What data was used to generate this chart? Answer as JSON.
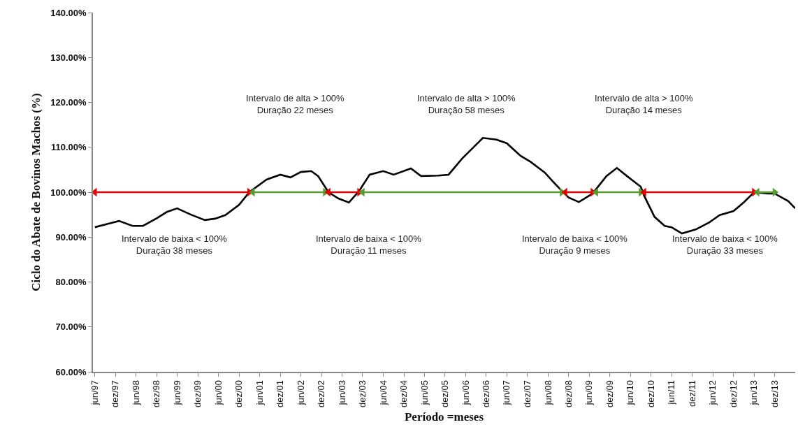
{
  "chart_data": {
    "type": "line",
    "xlabel": "Período =meses",
    "ylabel": "Ciclo do Abate de Bovinos Machos (%)",
    "ylim": [
      60,
      140
    ],
    "yticks": [
      {
        "value": 60,
        "label": "60.00%"
      },
      {
        "value": 70,
        "label": "70.00%"
      },
      {
        "value": 80,
        "label": "80.00%"
      },
      {
        "value": 90,
        "label": "90.00%"
      },
      {
        "value": 100,
        "label": "100.00%"
      },
      {
        "value": 110,
        "label": "110.00%"
      },
      {
        "value": 120,
        "label": "120.00%"
      },
      {
        "value": 130,
        "label": "130.00%"
      },
      {
        "value": 140,
        "label": "140.00%"
      }
    ],
    "xlim": [
      "1997-05-15",
      "2014-06"
    ],
    "xticks": [
      {
        "value": "1997-06",
        "label": "jun/97"
      },
      {
        "value": "1997-12",
        "label": "dez/97"
      },
      {
        "value": "1998-06",
        "label": "jun/98"
      },
      {
        "value": "1998-12",
        "label": "dez/98"
      },
      {
        "value": "1999-06",
        "label": "jun/99"
      },
      {
        "value": "1999-12",
        "label": "dez/99"
      },
      {
        "value": "2000-06",
        "label": "jun/00"
      },
      {
        "value": "2000-12",
        "label": "dez/00"
      },
      {
        "value": "2001-06",
        "label": "jun/01"
      },
      {
        "value": "2001-12",
        "label": "dez/01"
      },
      {
        "value": "2002-06",
        "label": "jun/02"
      },
      {
        "value": "2002-12",
        "label": "dez/02"
      },
      {
        "value": "2003-06",
        "label": "jun/03"
      },
      {
        "value": "2003-12",
        "label": "dez/03"
      },
      {
        "value": "2004-06",
        "label": "jun/04"
      },
      {
        "value": "2004-12",
        "label": "dez/04"
      },
      {
        "value": "2005-06",
        "label": "jun/05"
      },
      {
        "value": "2005-12",
        "label": "dez/05"
      },
      {
        "value": "2006-06",
        "label": "jun/06"
      },
      {
        "value": "2006-12",
        "label": "dez/06"
      },
      {
        "value": "2007-06",
        "label": "jun/07"
      },
      {
        "value": "2007-12",
        "label": "dez/07"
      },
      {
        "value": "2008-06",
        "label": "jun/08"
      },
      {
        "value": "2008-12",
        "label": "dez/08"
      },
      {
        "value": "2009-06",
        "label": "jun/09"
      },
      {
        "value": "2009-12",
        "label": "dez/09"
      },
      {
        "value": "2010-06",
        "label": "jun/10"
      },
      {
        "value": "2010-12",
        "label": "dez/10"
      },
      {
        "value": "2011-06",
        "label": "jun/11"
      },
      {
        "value": "2011-12",
        "label": "dez/11"
      },
      {
        "value": "2012-06",
        "label": "jun/12"
      },
      {
        "value": "2012-12",
        "label": "dez/12"
      },
      {
        "value": "2013-06",
        "label": "jun/13"
      },
      {
        "value": "2013-12",
        "label": "dez/13"
      }
    ],
    "series": [
      {
        "color": "#000000",
        "x": [
          "1997-06",
          "1997-10",
          "1998-01",
          "1998-05",
          "1998-08",
          "1998-12",
          "1999-03",
          "1999-06",
          "1999-10",
          "2000-02",
          "2000-05",
          "2000-08",
          "2000-12",
          "2001-03",
          "2001-08",
          "2001-12",
          "2002-03",
          "2002-06",
          "2002-09",
          "2002-11",
          "2003-02",
          "2003-05",
          "2003-08",
          "2003-11",
          "2004-02",
          "2004-06",
          "2004-09",
          "2005-02",
          "2005-05",
          "2005-10",
          "2006-01",
          "2006-05",
          "2006-07",
          "2006-11",
          "2007-03",
          "2007-06",
          "2007-10",
          "2008-01",
          "2008-05",
          "2008-08",
          "2008-10",
          "2008-12",
          "2009-03",
          "2009-07",
          "2009-11",
          "2010-02",
          "2010-05",
          "2010-09",
          "2010-10",
          "2011-01",
          "2011-04",
          "2011-06",
          "2011-09",
          "2012-01",
          "2012-05",
          "2012-08",
          "2012-12",
          "2013-03",
          "2013-06",
          "2013-10",
          "2013-12",
          "2014-04",
          "2014-06"
        ],
        "values": [
          92.2,
          93.0,
          93.6,
          92.5,
          92.5,
          94.2,
          95.6,
          96.4,
          95.0,
          93.8,
          94.1,
          94.9,
          97.2,
          100.0,
          102.8,
          103.9,
          103.3,
          104.5,
          104.7,
          103.6,
          100.0,
          98.6,
          97.7,
          100.3,
          103.9,
          104.7,
          103.9,
          105.3,
          103.6,
          103.7,
          103.9,
          107.5,
          109.0,
          112.1,
          111.7,
          110.9,
          108.1,
          106.7,
          104.4,
          101.9,
          100.3,
          98.8,
          97.8,
          99.7,
          103.6,
          105.4,
          103.6,
          101.2,
          99.2,
          94.5,
          92.5,
          92.2,
          90.8,
          91.7,
          93.3,
          94.9,
          95.8,
          97.7,
          100.0,
          99.7,
          99.7,
          98.0,
          96.4
        ]
      },
      {
        "color": "#e00000",
        "marker": "triangle",
        "x": [
          "1997-06",
          "2001-03"
        ],
        "values": [
          100,
          100
        ]
      },
      {
        "color": "#5a9a32",
        "marker": "triangle",
        "x": [
          "2001-04",
          "2003-01"
        ],
        "values": [
          100,
          100
        ]
      },
      {
        "color": "#e00000",
        "marker": "triangle",
        "x": [
          "2003-02",
          "2003-11"
        ],
        "values": [
          100,
          100
        ]
      },
      {
        "color": "#5a9a32",
        "marker": "triangle",
        "x": [
          "2003-12",
          "2008-10"
        ],
        "values": [
          100,
          100
        ]
      },
      {
        "color": "#e00000",
        "marker": "triangle",
        "x": [
          "2008-11",
          "2009-07"
        ],
        "values": [
          100,
          100
        ]
      },
      {
        "color": "#5a9a32",
        "marker": "triangle",
        "x": [
          "2009-08",
          "2010-09"
        ],
        "values": [
          100,
          100
        ]
      },
      {
        "color": "#e00000",
        "marker": "triangle",
        "x": [
          "2010-10",
          "2013-06"
        ],
        "values": [
          100,
          100
        ]
      },
      {
        "color": "#5a9a32",
        "marker": "triangle",
        "x": [
          "2013-07",
          "2013-12"
        ],
        "values": [
          100,
          100
        ]
      }
    ],
    "annotations": [
      "Intervalo de alta > 100%\nDuração 22 meses",
      "Intervalo de alta > 100%\nDuração 58 meses",
      "Intervalo de alta > 100%\nDuração 14 meses",
      "Intervalo de baixa < 100%\nDuração 38 meses",
      "Intervalo de baixa < 100%\nDuração 11 meses",
      "Intervalo de baixa < 100%\nDuração 9 meses",
      "Intervalo de baixa < 100%\nDuração 33 meses"
    ]
  }
}
